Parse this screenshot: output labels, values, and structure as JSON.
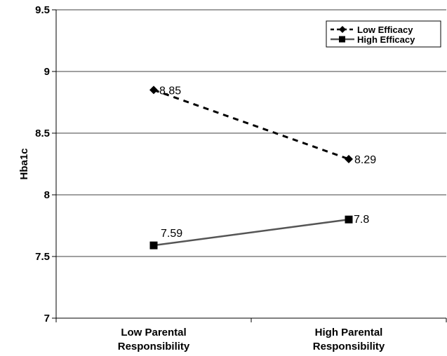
{
  "chart_data": {
    "type": "line",
    "categories": [
      "Low Parental Responsibility",
      "High Parental Responsibility"
    ],
    "category_lines": [
      [
        "Low Parental",
        "Responsibility"
      ],
      [
        "High Parental",
        "Responsibility"
      ]
    ],
    "series": [
      {
        "name": "Low Efficacy",
        "values": [
          8.85,
          8.29
        ],
        "labels": [
          "8.85",
          "8.29"
        ],
        "marker": "diamond",
        "line_style": "dashed",
        "color": "#000000"
      },
      {
        "name": "High Efficacy",
        "values": [
          7.59,
          7.8
        ],
        "labels": [
          "7.59",
          "7.8"
        ],
        "marker": "square",
        "line_style": "solid",
        "color": "#555555"
      }
    ],
    "ylabel": "Hba1c",
    "ylim": [
      7,
      9.5
    ],
    "yticks": [
      7,
      7.5,
      8,
      8.5,
      9,
      9.5
    ],
    "ytick_labels": [
      "7",
      "7.5",
      "8",
      "8.5",
      "9",
      "9.5"
    ],
    "grid": true,
    "legend_position": "top-right"
  }
}
